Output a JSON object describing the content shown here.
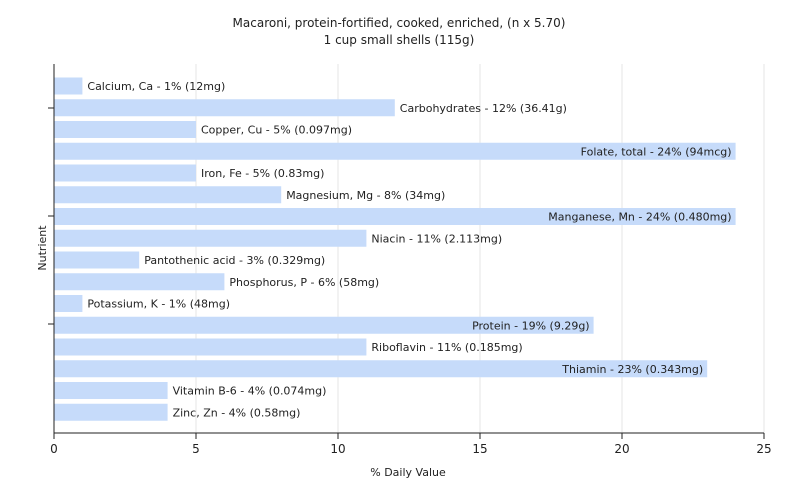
{
  "chart_data": {
    "type": "bar",
    "orientation": "horizontal",
    "title": "Macaroni, protein-fortified, cooked, enriched, (n x 5.70)",
    "subtitle": "1 cup small shells (115g)",
    "xlabel": "% Daily Value",
    "ylabel": "Nutrient",
    "xlim": [
      0,
      25
    ],
    "xticks": [
      "0",
      "5",
      "10",
      "15",
      "20",
      "25"
    ],
    "grid": true,
    "bar_color": "#c6dbfa",
    "categories": [
      "Calcium, Ca - 1% (12mg)",
      "Carbohydrates - 12% (36.41g)",
      "Copper, Cu - 5% (0.097mg)",
      "Folate, total - 24% (94mcg)",
      "Iron, Fe - 5% (0.83mg)",
      "Magnesium, Mg - 8% (34mg)",
      "Manganese, Mn - 24% (0.480mg)",
      "Niacin - 11% (2.113mg)",
      "Pantothenic acid - 3% (0.329mg)",
      "Phosphorus, P - 6% (58mg)",
      "Potassium, K - 1% (48mg)",
      "Protein - 19% (9.29g)",
      "Riboflavin - 11% (0.185mg)",
      "Thiamin - 23% (0.343mg)",
      "Vitamin B-6 - 4% (0.074mg)",
      "Zinc, Zn - 4% (0.58mg)"
    ],
    "values": [
      1,
      12,
      5,
      24,
      5,
      8,
      24,
      11,
      3,
      6,
      1,
      19,
      11,
      23,
      4,
      4
    ]
  }
}
